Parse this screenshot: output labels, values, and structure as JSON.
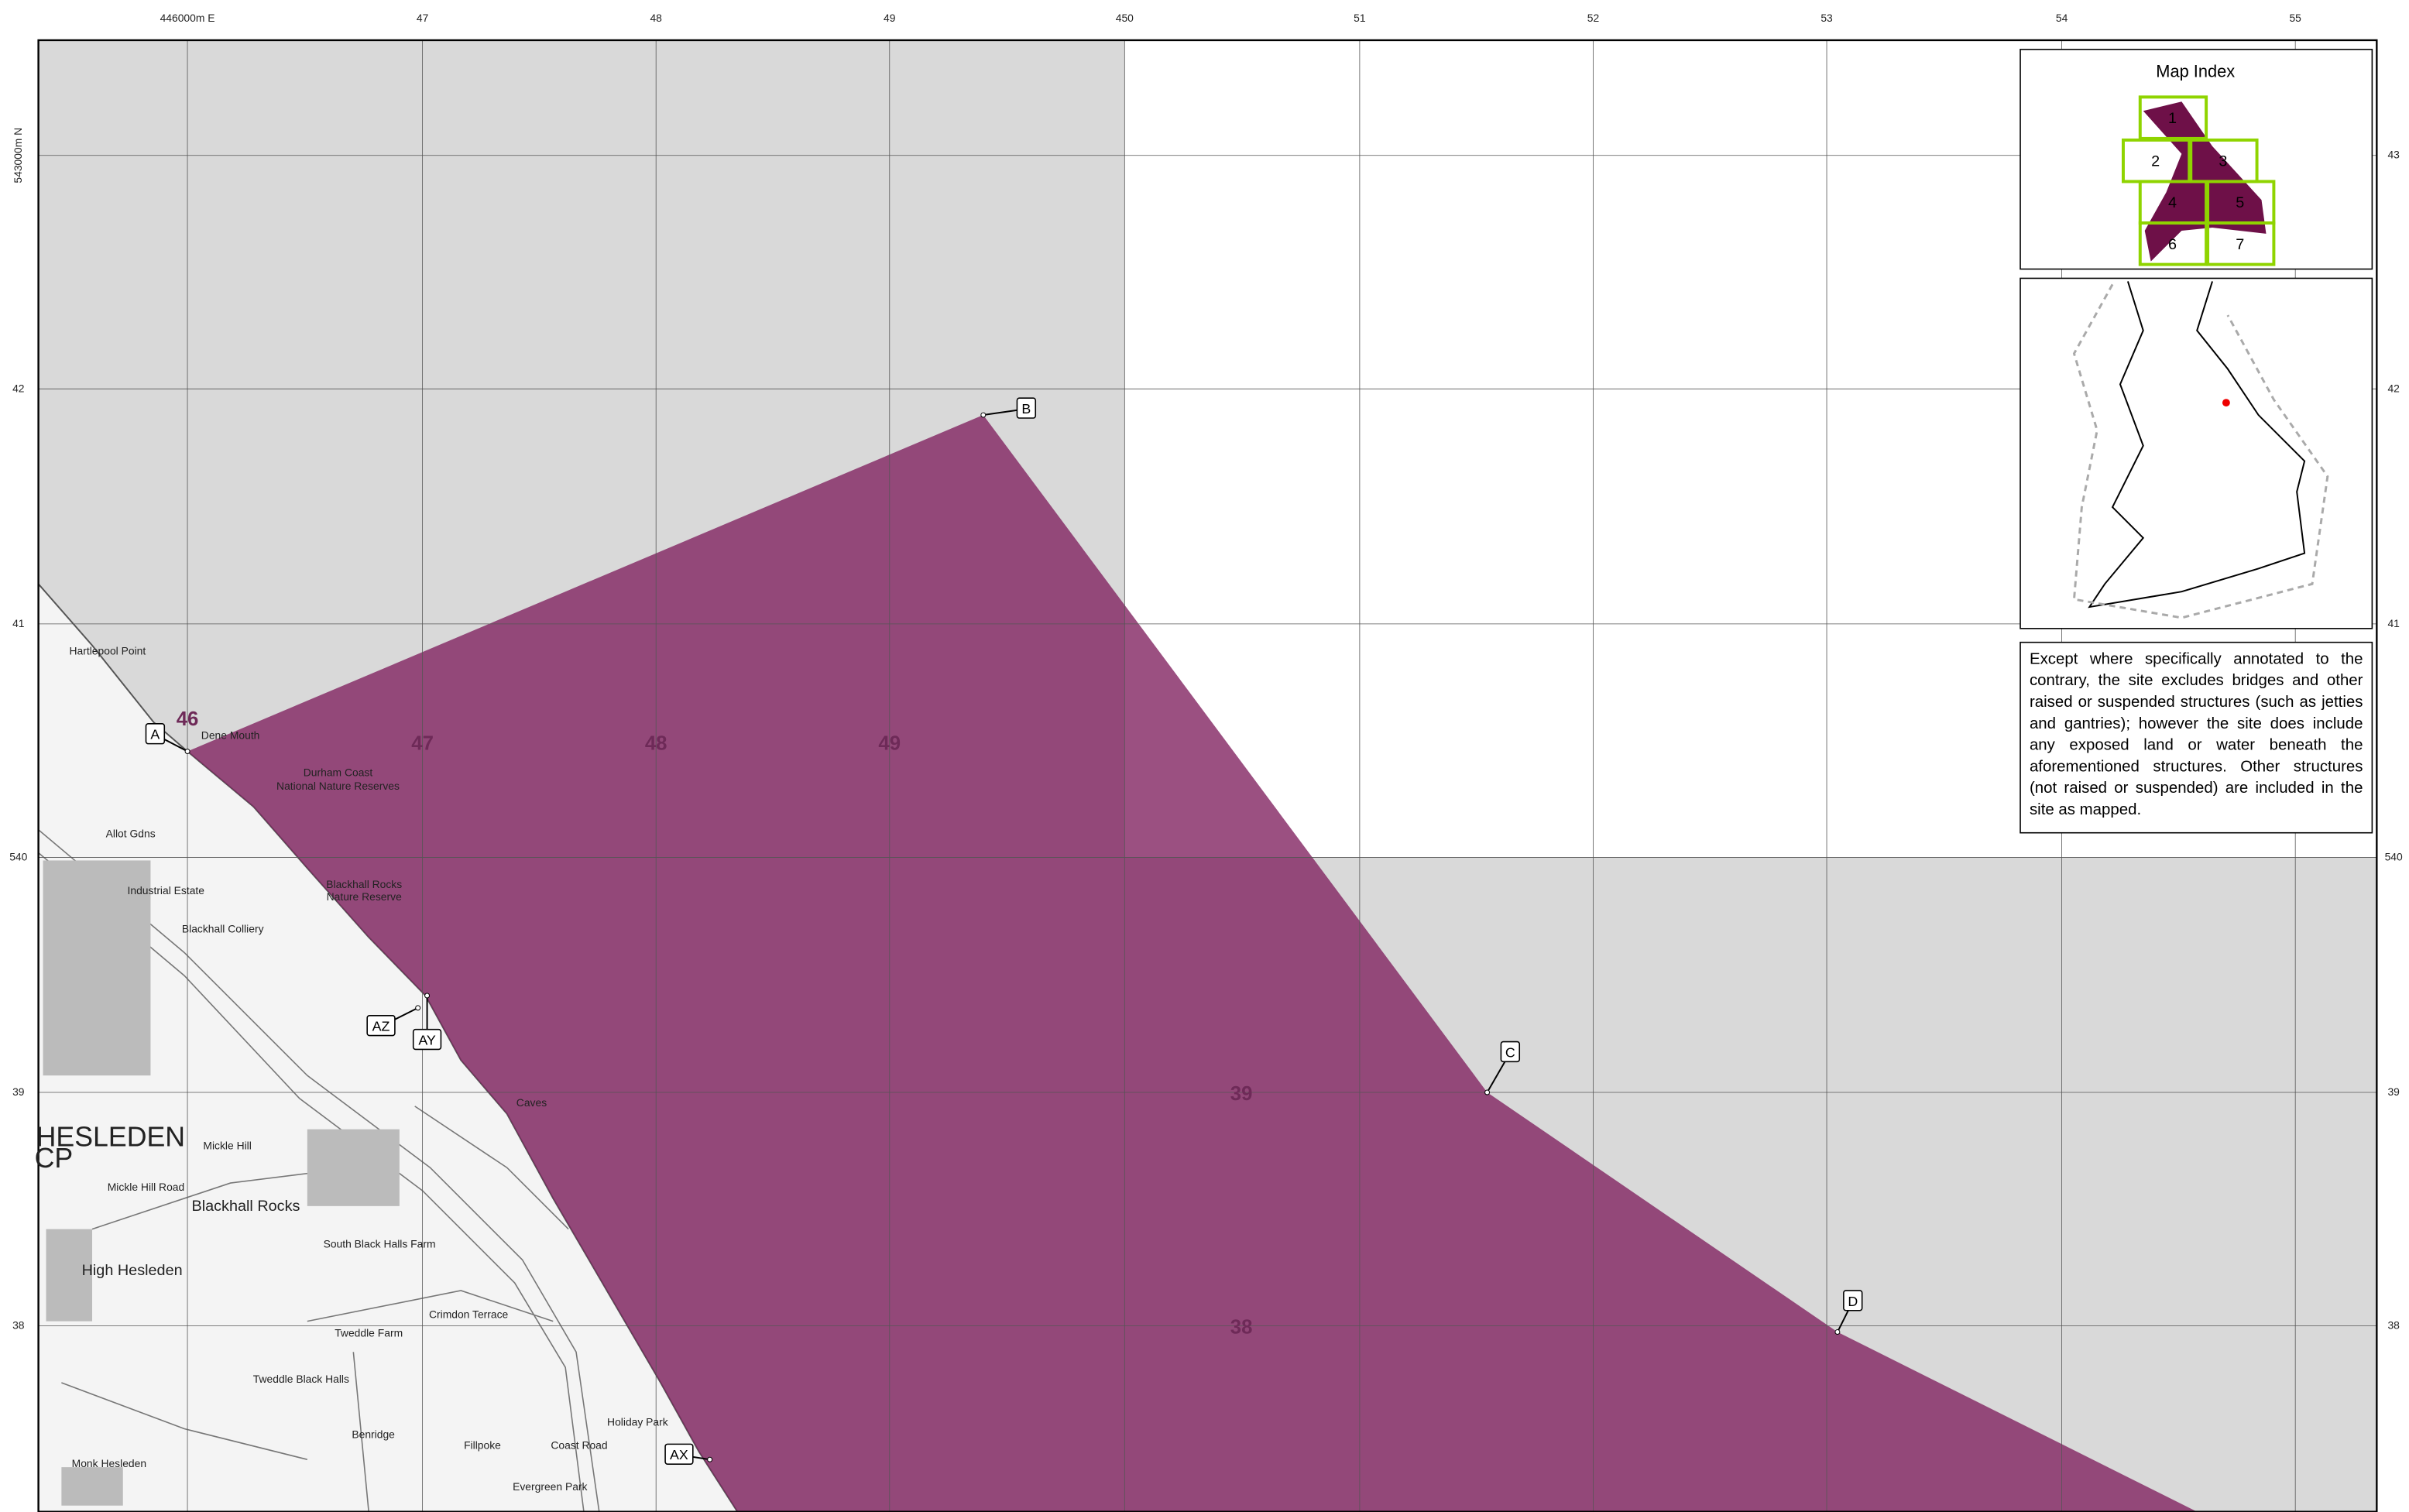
{
  "map": {
    "easting_labels": [
      "446000m E",
      "47",
      "48",
      "49",
      "450",
      "51",
      "52",
      "53",
      "54",
      "55"
    ],
    "northing_labels_left": [
      "543000m N",
      "42",
      "41",
      "540",
      "39",
      "38"
    ],
    "northing_labels_right": [
      "43",
      "42",
      "41",
      "540",
      "39",
      "38"
    ],
    "grid_numbers": [
      "46",
      "47",
      "48",
      "49",
      "39",
      "38"
    ],
    "points": [
      "A",
      "B",
      "C",
      "D",
      "AX",
      "AY",
      "AZ"
    ],
    "place_names": [
      "Hartlepool Point",
      "Dene Mouth",
      "Durham Coast",
      "National Nature Reserves",
      "Blackhall Rocks",
      "Nature Reserve",
      "Blackhall Colliery",
      "Industrial Estate",
      "Allot Gdns",
      "HESLEDEN",
      "CP",
      "Mickle Hill",
      "Blackhall Rocks",
      "High Hesleden",
      "Tweddle Farm",
      "Tweddle Black Halls",
      "Benridge",
      "Fillpoke",
      "Monk Hesleden",
      "Crimdon Terrace",
      "South Black Halls Farm",
      "Mickle Hill Road",
      "Coast Road",
      "Holiday Park",
      "Evergreen Park",
      "Caves"
    ]
  },
  "index": {
    "title": "Map Index",
    "tiles": [
      "1",
      "2",
      "3",
      "4",
      "5",
      "6",
      "7"
    ]
  },
  "note": "Except where specifically annotated to the contrary, the site excludes bridges and other raised or suspended structures (such as jetties and gantries); however the site does include any exposed land or water beneath the aforementioned structures. Other structures (not raised or suspended) are included in the site as mapped."
}
